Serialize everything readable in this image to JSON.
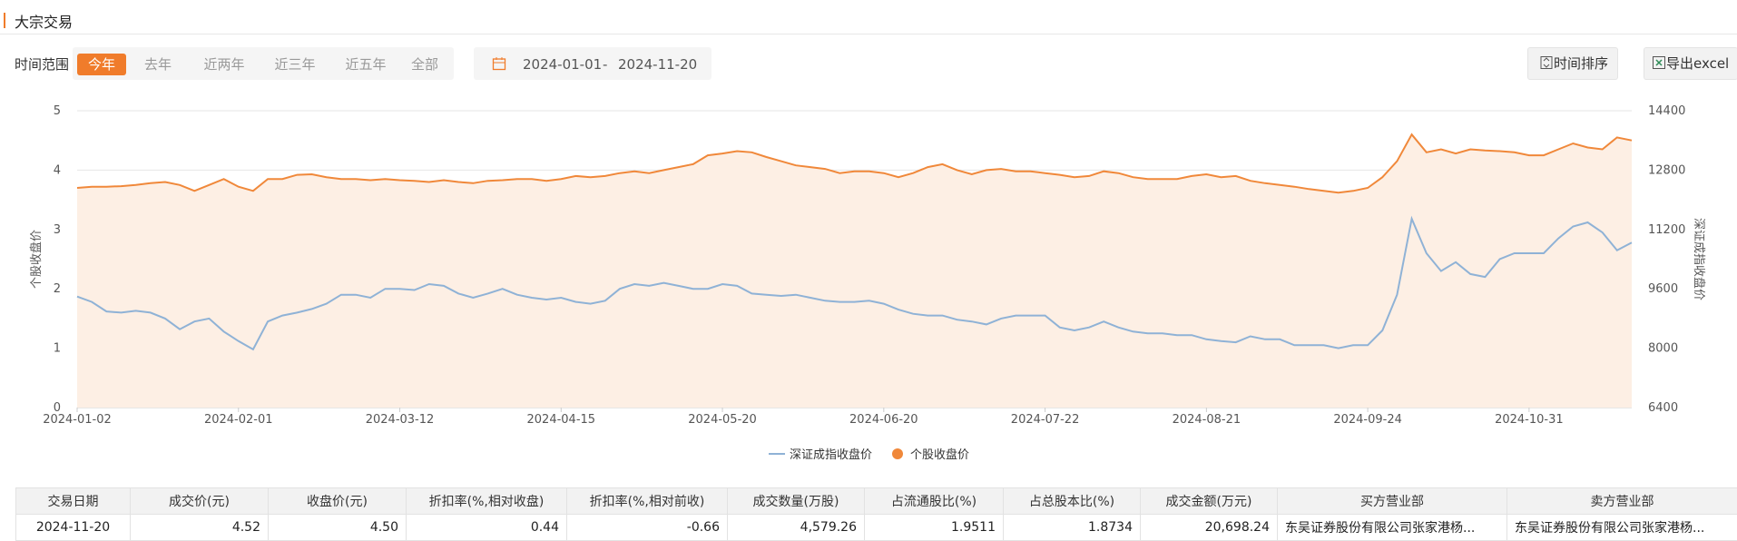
{
  "header": {
    "title": "大宗交易"
  },
  "filters": {
    "label": "时间范围",
    "options": [
      "今年",
      "去年",
      "近两年",
      "近三年",
      "近五年",
      "全部"
    ],
    "start": "2024-01-01",
    "separator": "-",
    "end": "2024-11-20",
    "sort_button": "时间排序",
    "export_button": "导出excel"
  },
  "chart_data": {
    "type": "line",
    "categories": [
      "2024-01-02",
      null,
      null,
      null,
      null,
      null,
      null,
      null,
      null,
      null,
      null,
      "2024-02-01",
      null,
      null,
      null,
      null,
      null,
      null,
      null,
      null,
      null,
      null,
      "2024-03-12",
      null,
      null,
      null,
      null,
      null,
      null,
      null,
      null,
      null,
      null,
      "2024-04-15",
      null,
      null,
      null,
      null,
      null,
      null,
      null,
      null,
      null,
      null,
      "2024-05-20",
      null,
      null,
      null,
      null,
      null,
      null,
      null,
      null,
      null,
      null,
      "2024-06-20",
      null,
      null,
      null,
      null,
      null,
      null,
      null,
      null,
      null,
      null,
      "2024-07-22",
      null,
      null,
      null,
      null,
      null,
      null,
      null,
      null,
      null,
      null,
      "2024-08-21",
      null,
      null,
      null,
      null,
      null,
      null,
      null,
      null,
      null,
      null,
      "2024-09-24",
      null,
      null,
      null,
      null,
      null,
      null,
      null,
      null,
      null,
      null,
      "2024-10-31",
      null,
      null,
      null,
      null,
      null,
      null,
      null
    ],
    "series": [
      {
        "name": "深证成指收盘价",
        "color": "#8fb2d6",
        "axis": "y2",
        "values": [
          9392,
          9248,
          8992,
          8960,
          9008,
          8960,
          8800,
          8512,
          8720,
          8800,
          8448,
          8192,
          7968,
          8720,
          8880,
          8960,
          9056,
          9200,
          9440,
          9440,
          9360,
          9600,
          9600,
          9568,
          9728,
          9680,
          9472,
          9360,
          9472,
          9600,
          9440,
          9360,
          9312,
          9360,
          9248,
          9200,
          9280,
          9600,
          9728,
          9680,
          9760,
          9680,
          9600,
          9600,
          9728,
          9680,
          9472,
          9440,
          9408,
          9440,
          9360,
          9280,
          9248,
          9248,
          9280,
          9200,
          9040,
          8928,
          8880,
          8880,
          8768,
          8720,
          8640,
          8800,
          8880,
          8880,
          8880,
          8560,
          8480,
          8560,
          8720,
          8560,
          8448,
          8400,
          8400,
          8352,
          8352,
          8240,
          8192,
          8160,
          8320,
          8240,
          8240,
          8080,
          8080,
          8080,
          8000,
          8080,
          8080,
          8480,
          9440,
          11488,
          10560,
          10080,
          10320,
          10000,
          9920,
          10400,
          10560,
          10560,
          10560,
          10960,
          11280,
          11392,
          11120,
          10640,
          10848
        ]
      },
      {
        "name": "个股收盘价",
        "color": "#f0883a",
        "fill": "#fdefe4",
        "values": [
          3.7,
          3.72,
          3.72,
          3.73,
          3.75,
          3.78,
          3.8,
          3.75,
          3.65,
          3.75,
          3.85,
          3.72,
          3.65,
          3.85,
          3.85,
          3.92,
          3.93,
          3.88,
          3.85,
          3.85,
          3.83,
          3.85,
          3.83,
          3.82,
          3.8,
          3.83,
          3.8,
          3.78,
          3.82,
          3.83,
          3.85,
          3.85,
          3.82,
          3.85,
          3.9,
          3.88,
          3.9,
          3.95,
          3.98,
          3.95,
          4.0,
          4.05,
          4.1,
          4.25,
          4.28,
          4.32,
          4.3,
          4.22,
          4.15,
          4.08,
          4.05,
          4.02,
          3.95,
          3.98,
          3.98,
          3.95,
          3.88,
          3.95,
          4.05,
          4.1,
          4.0,
          3.93,
          4.0,
          4.02,
          3.98,
          3.98,
          3.95,
          3.92,
          3.88,
          3.9,
          3.98,
          3.95,
          3.88,
          3.85,
          3.85,
          3.85,
          3.9,
          3.93,
          3.88,
          3.9,
          3.82,
          3.78,
          3.75,
          3.72,
          3.68,
          3.65,
          3.62,
          3.65,
          3.7,
          3.88,
          4.15,
          4.6,
          4.3,
          4.35,
          4.28,
          4.35,
          4.33,
          4.32,
          4.3,
          4.25,
          4.25,
          4.35,
          4.45,
          4.38,
          4.35,
          4.55,
          4.5
        ]
      }
    ],
    "ylabel": "个股收盘价",
    "y2label": "深证成指收盘价",
    "ylim": [
      0,
      5
    ],
    "yticks": [
      0,
      1,
      2,
      3,
      4,
      5
    ],
    "y2lim": [
      6400,
      14400
    ],
    "y2ticks": [
      6400,
      8000,
      9600,
      11200,
      12800,
      14400
    ],
    "grid": true,
    "legend": "bottom"
  },
  "table": {
    "columns": [
      "交易日期",
      "成交价(元)",
      "收盘价(元)",
      "折扣率(%,相对收盘)",
      "折扣率(%,相对前收)",
      "成交数量(万股)",
      "占流通股比(%)",
      "占总股本比(%)",
      "成交金额(万元)",
      "买方营业部",
      "卖方营业部"
    ],
    "rows": [
      [
        "2024-11-20",
        "4.52",
        "4.50",
        "0.44",
        "-0.66",
        "4,579.26",
        "1.9511",
        "1.8734",
        "20,698.24",
        "东吴证券股份有限公司张家港杨...",
        "东吴证券股份有限公司张家港杨..."
      ]
    ]
  }
}
